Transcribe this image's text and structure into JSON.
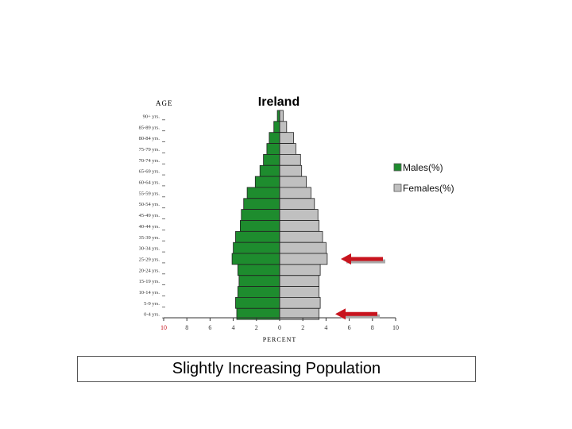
{
  "chart_data": {
    "type": "bar",
    "title": "Ireland",
    "ylabel": "AGE",
    "xlabel": "PERCENT",
    "categories": [
      "90+ yrs.",
      "85-89 yrs.",
      "80-84 yrs.",
      "75-79 yrs.",
      "70-74 yrs.",
      "65-69 yrs.",
      "60-64 yrs.",
      "55-59 yrs.",
      "50-54 yrs.",
      "45-49 yrs.",
      "40-44 yrs.",
      "35-39 yrs.",
      "30-34 yrs.",
      "25-29 yrs.",
      "20-24 yrs.",
      "15-19 yrs.",
      "10-14 yrs.",
      "5-9 yrs.",
      "0-4 yrs."
    ],
    "series": [
      {
        "name": "Males(%)",
        "color": "#1e8c2e",
        "values": [
          0.2,
          0.5,
          0.9,
          1.1,
          1.4,
          1.7,
          2.1,
          2.8,
          3.1,
          3.3,
          3.4,
          3.8,
          4.0,
          4.1,
          3.6,
          3.5,
          3.6,
          3.8,
          3.7
        ]
      },
      {
        "name": "Females(%)",
        "color": "#c0c0c0",
        "values": [
          0.3,
          0.6,
          1.2,
          1.4,
          1.8,
          1.9,
          2.3,
          2.7,
          3.0,
          3.3,
          3.4,
          3.7,
          4.0,
          4.1,
          3.5,
          3.4,
          3.4,
          3.5,
          3.4
        ]
      }
    ],
    "xticks": [
      "10",
      "8",
      "6",
      "4",
      "2",
      "0",
      "2",
      "4",
      "6",
      "8",
      "10"
    ],
    "xlim": [
      -10,
      10
    ],
    "legend_position": "right",
    "arrows": [
      {
        "age": "25-29 yrs.",
        "color": "#c8141e"
      },
      {
        "age": "0-4 yrs.",
        "color": "#c8141e"
      }
    ]
  },
  "caption": "Slightly Increasing Population"
}
